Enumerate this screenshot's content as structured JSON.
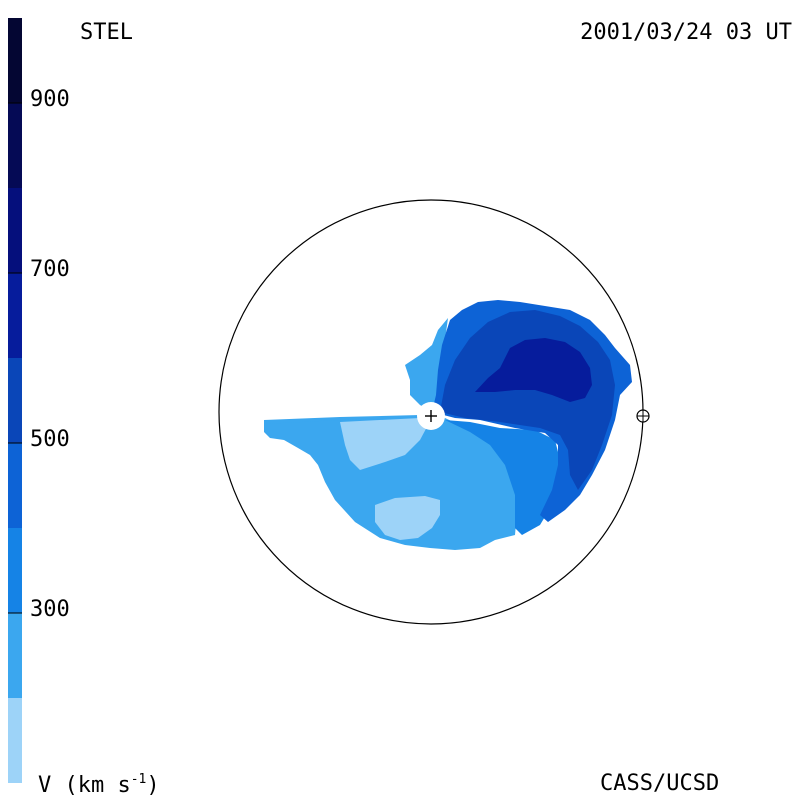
{
  "header": {
    "observatory": "STEL",
    "timestamp": "2001/03/24 03 UT"
  },
  "footer": {
    "units_prefix": "V (km s",
    "units_exp": "-1",
    "units_suffix": ")",
    "credit": "CASS/UCSD"
  },
  "colorbar": {
    "min": 100,
    "max": 1000,
    "ticks": [
      {
        "value": 900,
        "label": "900"
      },
      {
        "value": 700,
        "label": "700"
      },
      {
        "value": 500,
        "label": "500"
      },
      {
        "value": 300,
        "label": "300"
      }
    ],
    "bands": [
      {
        "from": 100,
        "to": 200,
        "color": "#9dd3f8"
      },
      {
        "from": 200,
        "to": 300,
        "color": "#3ba7ef"
      },
      {
        "from": 300,
        "to": 400,
        "color": "#1583e6"
      },
      {
        "from": 400,
        "to": 500,
        "color": "#0d63d6"
      },
      {
        "from": 500,
        "to": 600,
        "color": "#0a46b8"
      },
      {
        "from": 600,
        "to": 700,
        "color": "#061c9c"
      },
      {
        "from": 700,
        "to": 800,
        "color": "#050f7c"
      },
      {
        "from": 800,
        "to": 900,
        "color": "#050a55"
      },
      {
        "from": 900,
        "to": 1000,
        "color": "#040633"
      }
    ]
  },
  "symbols": {
    "sun": "sun-center-marker",
    "earth": "earth-marker"
  }
}
